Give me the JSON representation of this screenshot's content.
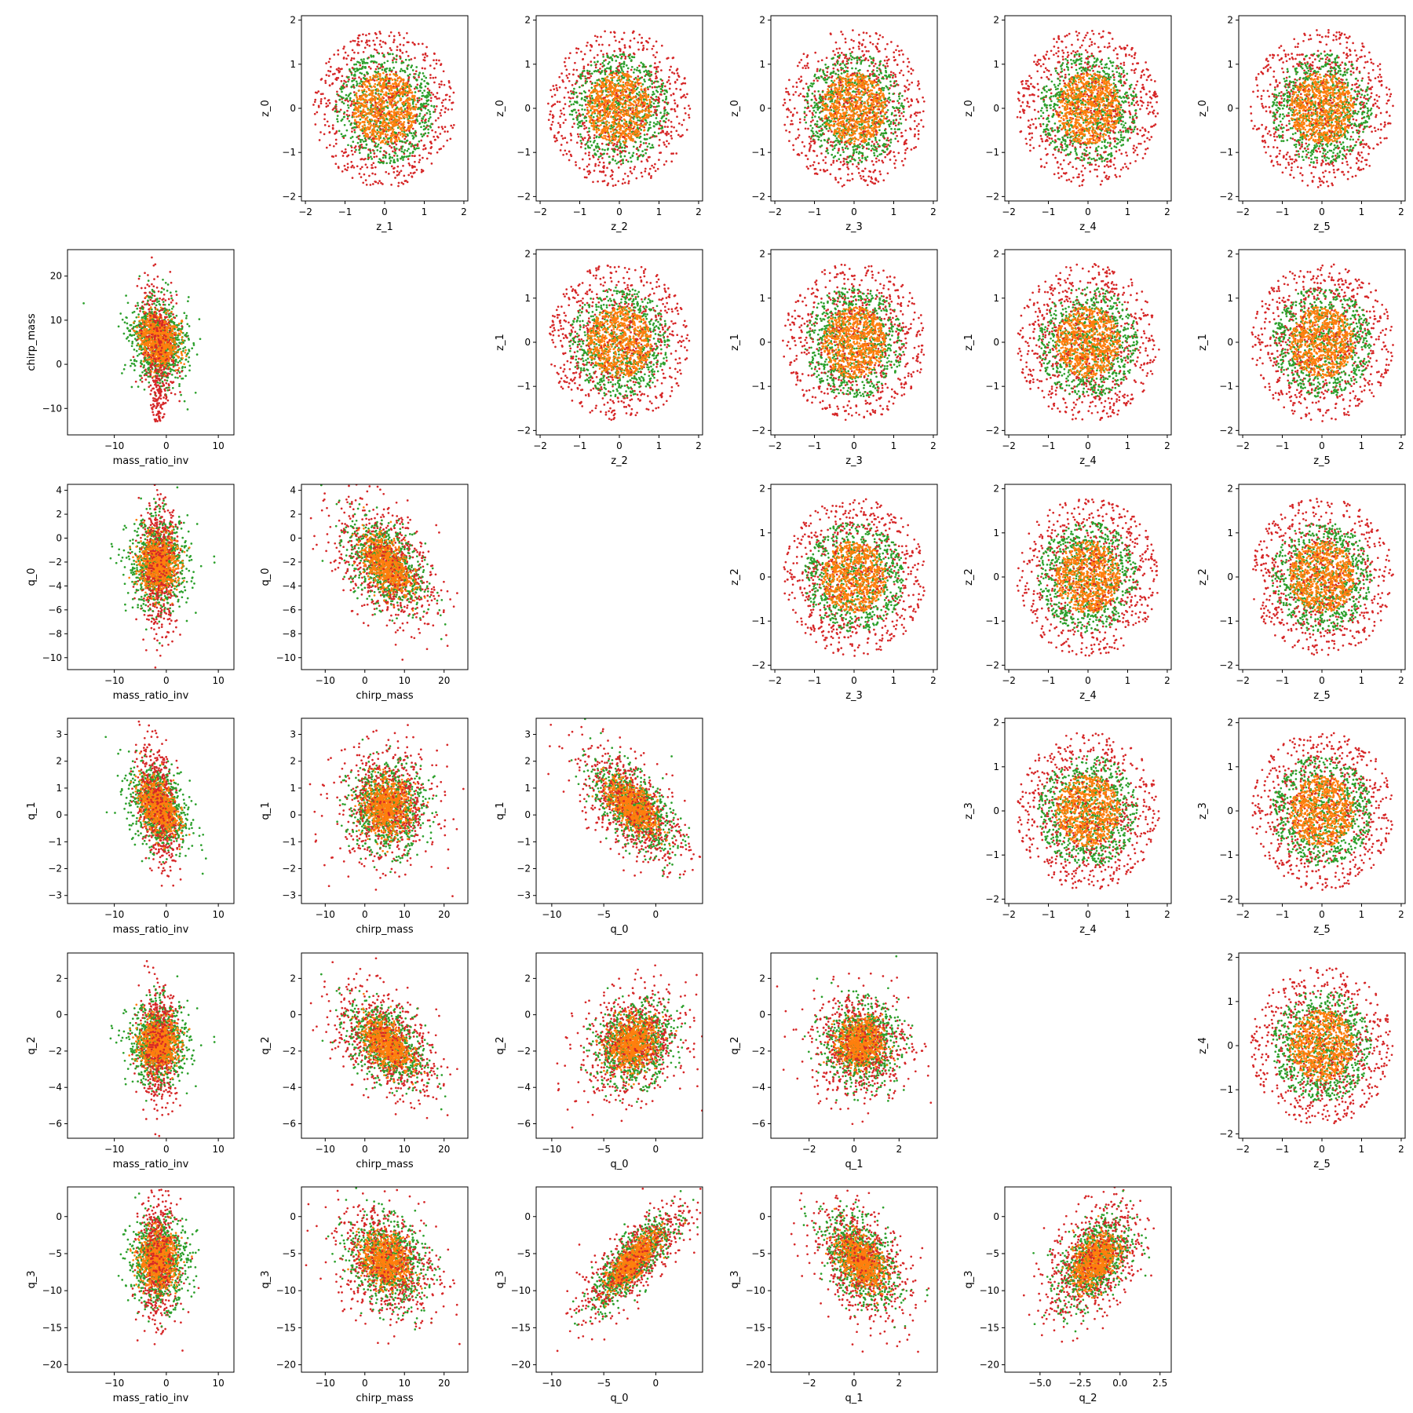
{
  "figure": {
    "type": "corner-scatter-matrix",
    "series_colors": [
      "#2ca02c",
      "#ff7f0e",
      "#d62728"
    ],
    "points_per_series": 700
  },
  "chart_data": [
    {
      "type": "scatter",
      "xlabel": "z_1",
      "ylabel": "z_0",
      "xlim": [
        -2.1,
        2.1
      ],
      "ylim": [
        -2.1,
        2.1
      ],
      "xticks": [
        "-2",
        "-1",
        "0",
        "1",
        "2"
      ],
      "yticks": [
        "-2",
        "-1",
        "0",
        "1",
        "2"
      ]
    },
    {
      "type": "scatter",
      "xlabel": "z_2",
      "ylabel": "z_0",
      "xlim": [
        -2.1,
        2.1
      ],
      "ylim": [
        -2.1,
        2.1
      ],
      "xticks": [
        "-2",
        "-1",
        "0",
        "1",
        "2"
      ],
      "yticks": [
        "-2",
        "-1",
        "0",
        "1",
        "2"
      ]
    },
    {
      "type": "scatter",
      "xlabel": "z_3",
      "ylabel": "z_0",
      "xlim": [
        -2.1,
        2.1
      ],
      "ylim": [
        -2.1,
        2.1
      ],
      "xticks": [
        "-2",
        "-1",
        "0",
        "1",
        "2"
      ],
      "yticks": [
        "-2",
        "-1",
        "0",
        "1",
        "2"
      ]
    },
    {
      "type": "scatter",
      "xlabel": "z_4",
      "ylabel": "z_0",
      "xlim": [
        -2.1,
        2.1
      ],
      "ylim": [
        -2.1,
        2.1
      ],
      "xticks": [
        "-2",
        "-1",
        "0",
        "1",
        "2"
      ],
      "yticks": [
        "-2",
        "-1",
        "0",
        "1",
        "2"
      ]
    },
    {
      "type": "scatter",
      "xlabel": "z_5",
      "ylabel": "z_0",
      "xlim": [
        -2.1,
        2.1
      ],
      "ylim": [
        -2.1,
        2.1
      ],
      "xticks": [
        "-2",
        "-1",
        "0",
        "1",
        "2"
      ],
      "yticks": [
        "-2",
        "-1",
        "0",
        "1",
        "2"
      ]
    },
    {
      "type": "scatter",
      "xlabel": "mass_ratio_inv",
      "ylabel": "chirp_mass",
      "xlim": [
        -19,
        13
      ],
      "ylim": [
        -16,
        26
      ],
      "xticks": [
        "-10",
        "0",
        "10"
      ],
      "yticks": [
        "-10",
        "0",
        "10",
        "20"
      ]
    },
    {
      "type": "scatter",
      "xlabel": "z_2",
      "ylabel": "z_1",
      "xlim": [
        -2.1,
        2.1
      ],
      "ylim": [
        -2.1,
        2.1
      ],
      "xticks": [
        "-2",
        "-1",
        "0",
        "1",
        "2"
      ],
      "yticks": [
        "-2",
        "-1",
        "0",
        "1",
        "2"
      ]
    },
    {
      "type": "scatter",
      "xlabel": "z_3",
      "ylabel": "z_1",
      "xlim": [
        -2.1,
        2.1
      ],
      "ylim": [
        -2.1,
        2.1
      ],
      "xticks": [
        "-2",
        "-1",
        "0",
        "1",
        "2"
      ],
      "yticks": [
        "-2",
        "-1",
        "0",
        "1",
        "2"
      ]
    },
    {
      "type": "scatter",
      "xlabel": "z_4",
      "ylabel": "z_1",
      "xlim": [
        -2.1,
        2.1
      ],
      "ylim": [
        -2.1,
        2.1
      ],
      "xticks": [
        "-2",
        "-1",
        "0",
        "1",
        "2"
      ],
      "yticks": [
        "-2",
        "-1",
        "0",
        "1",
        "2"
      ]
    },
    {
      "type": "scatter",
      "xlabel": "z_5",
      "ylabel": "z_1",
      "xlim": [
        -2.1,
        2.1
      ],
      "ylim": [
        -2.1,
        2.1
      ],
      "xticks": [
        "-2",
        "-1",
        "0",
        "1",
        "2"
      ],
      "yticks": [
        "-2",
        "-1",
        "0",
        "1",
        "2"
      ]
    },
    {
      "type": "scatter",
      "xlabel": "mass_ratio_inv",
      "ylabel": "q_0",
      "xlim": [
        -19,
        13
      ],
      "ylim": [
        -11,
        4.5
      ],
      "xticks": [
        "-10",
        "0",
        "10"
      ],
      "yticks": [
        "-10",
        "-8",
        "-6",
        "-4",
        "-2",
        "0",
        "2",
        "4"
      ]
    },
    {
      "type": "scatter",
      "xlabel": "chirp_mass",
      "ylabel": "q_0",
      "xlim": [
        -16,
        26
      ],
      "ylim": [
        -11,
        4.5
      ],
      "xticks": [
        "-10",
        "0",
        "10",
        "20"
      ],
      "yticks": [
        "-10",
        "-8",
        "-6",
        "-4",
        "-2",
        "0",
        "2",
        "4"
      ]
    },
    {
      "type": "scatter",
      "xlabel": "z_3",
      "ylabel": "z_2",
      "xlim": [
        -2.1,
        2.1
      ],
      "ylim": [
        -2.1,
        2.1
      ],
      "xticks": [
        "-2",
        "-1",
        "0",
        "1",
        "2"
      ],
      "yticks": [
        "-2",
        "-1",
        "0",
        "1",
        "2"
      ]
    },
    {
      "type": "scatter",
      "xlabel": "z_4",
      "ylabel": "z_2",
      "xlim": [
        -2.1,
        2.1
      ],
      "ylim": [
        -2.1,
        2.1
      ],
      "xticks": [
        "-2",
        "-1",
        "0",
        "1",
        "2"
      ],
      "yticks": [
        "-2",
        "-1",
        "0",
        "1",
        "2"
      ]
    },
    {
      "type": "scatter",
      "xlabel": "z_5",
      "ylabel": "z_2",
      "xlim": [
        -2.1,
        2.1
      ],
      "ylim": [
        -2.1,
        2.1
      ],
      "xticks": [
        "-2",
        "-1",
        "0",
        "1",
        "2"
      ],
      "yticks": [
        "-2",
        "-1",
        "0",
        "1",
        "2"
      ]
    },
    {
      "type": "scatter",
      "xlabel": "mass_ratio_inv",
      "ylabel": "q_1",
      "xlim": [
        -19,
        13
      ],
      "ylim": [
        -3.3,
        3.6
      ],
      "xticks": [
        "-10",
        "0",
        "10"
      ],
      "yticks": [
        "-3",
        "-2",
        "-1",
        "0",
        "1",
        "2",
        "3"
      ]
    },
    {
      "type": "scatter",
      "xlabel": "chirp_mass",
      "ylabel": "q_1",
      "xlim": [
        -16,
        26
      ],
      "ylim": [
        -3.3,
        3.6
      ],
      "xticks": [
        "-10",
        "0",
        "10",
        "20"
      ],
      "yticks": [
        "-3",
        "-2",
        "-1",
        "0",
        "1",
        "2",
        "3"
      ]
    },
    {
      "type": "scatter",
      "xlabel": "q_0",
      "ylabel": "q_1",
      "xlim": [
        -11.5,
        4.5
      ],
      "ylim": [
        -3.3,
        3.6
      ],
      "xticks": [
        "-10",
        "-5",
        "0"
      ],
      "yticks": [
        "-3",
        "-2",
        "-1",
        "0",
        "1",
        "2",
        "3"
      ]
    },
    {
      "type": "scatter",
      "xlabel": "z_4",
      "ylabel": "z_3",
      "xlim": [
        -2.1,
        2.1
      ],
      "ylim": [
        -2.1,
        2.1
      ],
      "xticks": [
        "-2",
        "-1",
        "0",
        "1",
        "2"
      ],
      "yticks": [
        "-2",
        "-1",
        "0",
        "1",
        "2"
      ]
    },
    {
      "type": "scatter",
      "xlabel": "z_5",
      "ylabel": "z_3",
      "xlim": [
        -2.1,
        2.1
      ],
      "ylim": [
        -2.1,
        2.1
      ],
      "xticks": [
        "-2",
        "-1",
        "0",
        "1",
        "2"
      ],
      "yticks": [
        "-2",
        "-1",
        "0",
        "1",
        "2"
      ]
    },
    {
      "type": "scatter",
      "xlabel": "mass_ratio_inv",
      "ylabel": "q_2",
      "xlim": [
        -19,
        13
      ],
      "ylim": [
        -6.8,
        3.4
      ],
      "xticks": [
        "-10",
        "0",
        "10"
      ],
      "yticks": [
        "-6",
        "-4",
        "-2",
        "0",
        "2"
      ]
    },
    {
      "type": "scatter",
      "xlabel": "chirp_mass",
      "ylabel": "q_2",
      "xlim": [
        -16,
        26
      ],
      "ylim": [
        -6.8,
        3.4
      ],
      "xticks": [
        "-10",
        "0",
        "10",
        "20"
      ],
      "yticks": [
        "-6",
        "-4",
        "-2",
        "0",
        "2"
      ]
    },
    {
      "type": "scatter",
      "xlabel": "q_0",
      "ylabel": "q_2",
      "xlim": [
        -11.5,
        4.5
      ],
      "ylim": [
        -6.8,
        3.4
      ],
      "xticks": [
        "-10",
        "-5",
        "0"
      ],
      "yticks": [
        "-6",
        "-4",
        "-2",
        "0",
        "2"
      ]
    },
    {
      "type": "scatter",
      "xlabel": "q_1",
      "ylabel": "q_2",
      "xlim": [
        -3.7,
        3.7
      ],
      "ylim": [
        -6.8,
        3.4
      ],
      "xticks": [
        "-2",
        "0",
        "2"
      ],
      "yticks": [
        "-6",
        "-4",
        "-2",
        "0",
        "2"
      ]
    },
    {
      "type": "scatter",
      "xlabel": "z_5",
      "ylabel": "z_4",
      "xlim": [
        -2.1,
        2.1
      ],
      "ylim": [
        -2.1,
        2.1
      ],
      "xticks": [
        "-2",
        "-1",
        "0",
        "1",
        "2"
      ],
      "yticks": [
        "-2",
        "-1",
        "0",
        "1",
        "2"
      ]
    },
    {
      "type": "scatter",
      "xlabel": "mass_ratio_inv",
      "ylabel": "q_3",
      "xlim": [
        -19,
        13
      ],
      "ylim": [
        -21,
        4
      ],
      "xticks": [
        "-10",
        "0",
        "10"
      ],
      "yticks": [
        "-20",
        "-15",
        "-10",
        "-5",
        "0"
      ]
    },
    {
      "type": "scatter",
      "xlabel": "chirp_mass",
      "ylabel": "q_3",
      "xlim": [
        -16,
        26
      ],
      "ylim": [
        -21,
        4
      ],
      "xticks": [
        "-10",
        "0",
        "10",
        "20"
      ],
      "yticks": [
        "-20",
        "-15",
        "-10",
        "-5",
        "0"
      ]
    },
    {
      "type": "scatter",
      "xlabel": "q_0",
      "ylabel": "q_3",
      "xlim": [
        -11.5,
        4.5
      ],
      "ylim": [
        -21,
        4
      ],
      "xticks": [
        "-10",
        "-5",
        "0"
      ],
      "yticks": [
        "-20",
        "-15",
        "-10",
        "-5",
        "0"
      ]
    },
    {
      "type": "scatter",
      "xlabel": "q_1",
      "ylabel": "q_3",
      "xlim": [
        -3.7,
        3.7
      ],
      "ylim": [
        -21,
        4
      ],
      "xticks": [
        "-2",
        "0",
        "2"
      ],
      "yticks": [
        "-20",
        "-15",
        "-10",
        "-5",
        "0"
      ]
    },
    {
      "type": "scatter",
      "xlabel": "q_2",
      "ylabel": "q_3",
      "xlim": [
        -7.2,
        3.2
      ],
      "ylim": [
        -21,
        4
      ],
      "xticks": [
        "-5.0",
        "-2.5",
        "0.0",
        "2.5"
      ],
      "yticks": [
        "-20",
        "-15",
        "-10",
        "-5",
        "0"
      ]
    }
  ]
}
